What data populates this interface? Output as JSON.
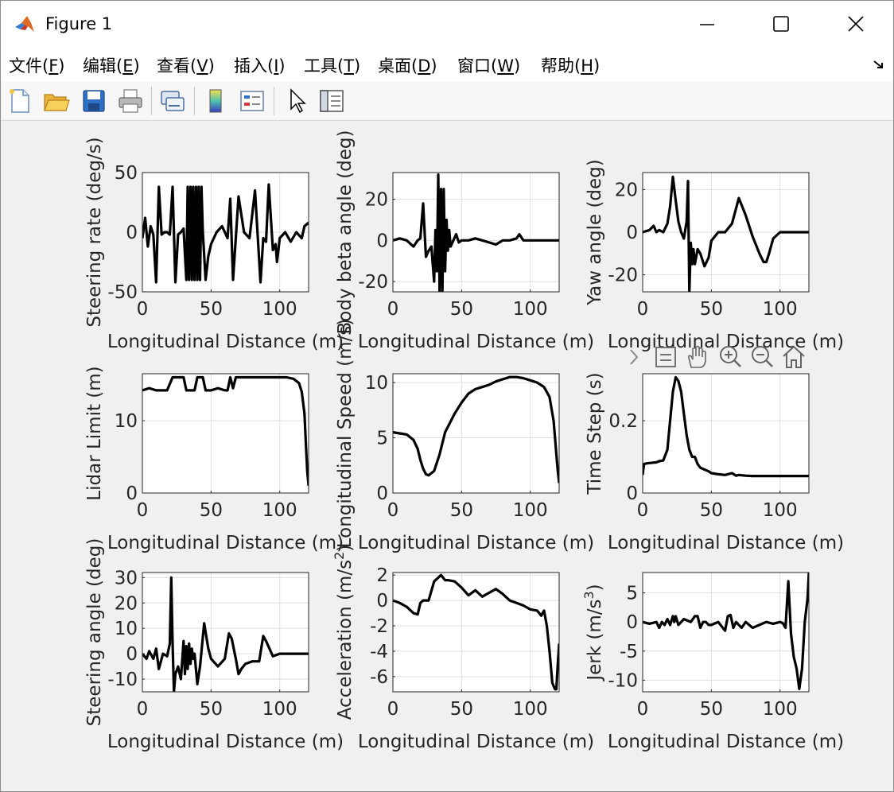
{
  "window": {
    "title": "Figure 1"
  },
  "menu": [
    {
      "pre": "文件(",
      "key": "F",
      "post": ")"
    },
    {
      "pre": "编辑(",
      "key": "E",
      "post": ")"
    },
    {
      "pre": "查看(",
      "key": "V",
      "post": ")"
    },
    {
      "pre": "插入(",
      "key": "I",
      "post": ")"
    },
    {
      "pre": "工具(",
      "key": "T",
      "post": ")"
    },
    {
      "pre": "桌面(",
      "key": "D",
      "post": ")"
    },
    {
      "pre": "窗口(",
      "key": "W",
      "post": ")"
    },
    {
      "pre": "帮助(",
      "key": "H",
      "post": ")"
    }
  ],
  "toolbar_icons": [
    "new-figure-icon",
    "open-file-icon",
    "save-icon",
    "print-icon",
    "link-plot-icon",
    "colorbar-icon",
    "legend-icon",
    "pointer-icon",
    "property-inspector-icon"
  ],
  "axes_toolbar_icons": [
    "chevron-right-icon",
    "data-tips-icon",
    "pan-hand-icon",
    "zoom-in-icon",
    "zoom-out-icon",
    "home-icon"
  ],
  "colors": {
    "line": "#000000",
    "axes_bg": "#ffffff",
    "grid": "#dfdfdf",
    "figure_bg": "#f0f0f0"
  },
  "chart_data": [
    {
      "type": "line",
      "ylabel": "Steering rate (deg/s)",
      "xlabel": "Longitudinal Distance (m)",
      "xlim": [
        0,
        121
      ],
      "ylim": [
        -50,
        50
      ],
      "xticks": [
        "0",
        "50",
        "100"
      ],
      "yticks": [
        "-50",
        "0",
        "50"
      ],
      "grid": true,
      "x": [
        0,
        2,
        4,
        6,
        8,
        10,
        12,
        14,
        16,
        18,
        20,
        22,
        24,
        26,
        28,
        30,
        32,
        33,
        34,
        35,
        36,
        37,
        38,
        39,
        40,
        41,
        42,
        43,
        44,
        46,
        48,
        50,
        54,
        58,
        62,
        64,
        66,
        70,
        74,
        78,
        82,
        86,
        88,
        90,
        92,
        95,
        97,
        98,
        100,
        104,
        108,
        112,
        116,
        118,
        121
      ],
      "y": [
        -5,
        12,
        -12,
        5,
        -2,
        -42,
        38,
        -2,
        0,
        0,
        -2,
        38,
        -42,
        -2,
        0,
        3,
        -40,
        38,
        -40,
        38,
        -40,
        38,
        -40,
        38,
        -40,
        38,
        -40,
        38,
        0,
        -40,
        -20,
        -10,
        0,
        5,
        -5,
        28,
        -40,
        30,
        0,
        -5,
        35,
        -42,
        -5,
        -8,
        40,
        -15,
        -10,
        -25,
        -5,
        0,
        -8,
        0,
        -5,
        5,
        8
      ]
    },
    {
      "type": "line",
      "ylabel": "Body beta angle (deg)",
      "xlabel": "Longitudinal Distance (m)",
      "xlim": [
        0,
        121
      ],
      "ylim": [
        -25,
        33
      ],
      "xticks": [
        "0",
        "50",
        "100"
      ],
      "yticks": [
        "-20",
        "0",
        "20"
      ],
      "grid": true,
      "x": [
        0,
        5,
        10,
        15,
        18,
        20,
        22,
        24,
        26,
        28,
        30,
        31,
        32,
        33,
        34,
        35,
        36,
        37,
        38,
        39,
        40,
        41,
        42,
        44,
        46,
        48,
        50,
        55,
        60,
        65,
        70,
        75,
        80,
        85,
        90,
        92,
        95,
        100,
        110,
        121
      ],
      "y": [
        0,
        1,
        0,
        -3,
        0,
        1,
        18,
        -8,
        -5,
        -3,
        -20,
        5,
        -15,
        32,
        -25,
        25,
        -25,
        25,
        -15,
        10,
        -5,
        5,
        -3,
        0,
        3,
        -1,
        0,
        0,
        1,
        0,
        -1,
        -2,
        0,
        0,
        1,
        3,
        0,
        0,
        0,
        0
      ]
    },
    {
      "type": "line",
      "ylabel": "Yaw angle (deg)",
      "xlabel": "Longitudinal Distance (m)",
      "xlim": [
        0,
        121
      ],
      "ylim": [
        -28,
        28
      ],
      "xticks": [
        "0",
        "50",
        "100"
      ],
      "yticks": [
        "-20",
        "0",
        "20"
      ],
      "grid": true,
      "x": [
        0,
        5,
        8,
        10,
        12,
        15,
        18,
        20,
        22,
        24,
        26,
        28,
        30,
        32,
        33,
        34,
        35,
        36,
        37,
        38,
        40,
        42,
        45,
        48,
        50,
        55,
        60,
        65,
        70,
        75,
        80,
        85,
        88,
        90,
        92,
        95,
        100,
        110,
        121
      ],
      "y": [
        0,
        1,
        3,
        0,
        1,
        0,
        4,
        12,
        26,
        15,
        5,
        0,
        -3,
        5,
        24,
        -28,
        -5,
        -15,
        -8,
        -15,
        -8,
        -10,
        -16,
        -12,
        -4,
        0,
        0,
        4,
        16,
        8,
        -2,
        -10,
        -14,
        -14,
        -10,
        -3,
        0,
        0,
        0
      ]
    },
    {
      "type": "line",
      "ylabel": "Lidar Limit (m)",
      "xlabel": "Longitudinal Distance (m)",
      "xlim": [
        0,
        121
      ],
      "ylim": [
        0,
        16.5
      ],
      "xticks": [
        "0",
        "50",
        "100"
      ],
      "yticks": [
        "0",
        "10"
      ],
      "grid": true,
      "x": [
        0,
        5,
        10,
        15,
        18,
        22,
        24,
        30,
        32,
        38,
        40,
        44,
        46,
        50,
        55,
        60,
        62,
        64,
        66,
        68,
        70,
        75,
        80,
        90,
        100,
        105,
        110,
        114,
        116,
        118,
        119,
        120,
        121
      ],
      "y": [
        14.2,
        14.5,
        14.2,
        14.2,
        14.2,
        16,
        16,
        16,
        14.2,
        14.2,
        16,
        16,
        14.2,
        14.2,
        14.5,
        14.2,
        14.2,
        16,
        14.5,
        16,
        16,
        16,
        16,
        16,
        16,
        16,
        15.8,
        15.2,
        14,
        11,
        7,
        3,
        1
      ]
    },
    {
      "type": "line",
      "ylabel": "Longitudinal Speed (m/s)",
      "xlabel": "Longitudinal Distance (m)",
      "xlim": [
        0,
        121
      ],
      "ylim": [
        0,
        10.8
      ],
      "xticks": [
        "0",
        "50",
        "100"
      ],
      "yticks": [
        "0",
        "5",
        "10"
      ],
      "grid": true,
      "x": [
        0,
        5,
        10,
        15,
        18,
        20,
        22,
        24,
        26,
        30,
        34,
        38,
        45,
        50,
        55,
        60,
        65,
        70,
        75,
        80,
        85,
        90,
        95,
        100,
        105,
        110,
        114,
        117,
        119,
        120,
        121
      ],
      "y": [
        5.5,
        5.4,
        5.3,
        4.8,
        4,
        3,
        2.2,
        1.7,
        1.6,
        2,
        3.5,
        5.5,
        7.2,
        8.2,
        9,
        9.4,
        9.6,
        9.8,
        10.1,
        10.3,
        10.5,
        10.5,
        10.4,
        10.2,
        10,
        9.6,
        8.7,
        6.5,
        3.5,
        2,
        0.9
      ]
    },
    {
      "type": "line",
      "ylabel": "Time Step (s)",
      "xlabel": "Longitudinal Distance (m)",
      "xlim": [
        0,
        121
      ],
      "ylim": [
        0,
        0.33
      ],
      "xticks": [
        "0",
        "50",
        "100"
      ],
      "yticks": [
        "0",
        "0.2"
      ],
      "grid": true,
      "x": [
        0,
        1,
        3,
        5,
        10,
        12,
        15,
        18,
        20,
        22,
        24,
        26,
        28,
        30,
        32,
        34,
        36,
        38,
        40,
        42,
        45,
        48,
        50,
        55,
        60,
        65,
        68,
        70,
        75,
        80,
        90,
        100,
        110,
        121
      ],
      "y": [
        0.05,
        0.08,
        0.082,
        0.083,
        0.085,
        0.088,
        0.09,
        0.12,
        0.2,
        0.28,
        0.32,
        0.31,
        0.28,
        0.22,
        0.16,
        0.12,
        0.1,
        0.1,
        0.08,
        0.07,
        0.065,
        0.06,
        0.055,
        0.052,
        0.05,
        0.055,
        0.048,
        0.05,
        0.048,
        0.047,
        0.047,
        0.047,
        0.047,
        0.047
      ]
    },
    {
      "type": "line",
      "ylabel": "Steering angle (deg)",
      "xlabel": "Longitudinal Distance (m)",
      "xlim": [
        0,
        121
      ],
      "ylim": [
        -15,
        32
      ],
      "xticks": [
        "0",
        "50",
        "100"
      ],
      "yticks": [
        "-10",
        "0",
        "10",
        "20",
        "30"
      ],
      "grid": true,
      "x": [
        0,
        3,
        5,
        8,
        10,
        12,
        15,
        18,
        20,
        21,
        22,
        23,
        24,
        26,
        28,
        30,
        31,
        32,
        33,
        34,
        35,
        36,
        37,
        38,
        40,
        42,
        45,
        48,
        50,
        55,
        60,
        63,
        65,
        68,
        70,
        72,
        75,
        80,
        85,
        88,
        90,
        95,
        100,
        110,
        121
      ],
      "y": [
        0,
        -2,
        1,
        -2,
        2,
        -6,
        0,
        -1,
        4,
        30,
        4,
        -15,
        -8,
        -5,
        -10,
        5,
        -8,
        3,
        -6,
        4,
        -4,
        2,
        -2,
        0,
        -12,
        -5,
        12,
        2,
        -2,
        -5,
        -2,
        8,
        6,
        -2,
        -8,
        -6,
        -4,
        -3,
        -3,
        7,
        5,
        -1,
        0,
        0,
        0
      ]
    },
    {
      "type": "line",
      "ylabel": "Acceleration (m/s^2)",
      "xlabel": "Longitudinal Distance (m)",
      "xlim": [
        0,
        121
      ],
      "ylim": [
        -7.2,
        2.2
      ],
      "xticks": [
        "0",
        "50",
        "100"
      ],
      "yticks": [
        "-6",
        "-4",
        "-2",
        "0",
        "2"
      ],
      "grid": true,
      "x": [
        0,
        5,
        10,
        15,
        18,
        20,
        22,
        24,
        26,
        30,
        35,
        38,
        40,
        45,
        50,
        55,
        60,
        65,
        70,
        75,
        80,
        85,
        90,
        95,
        100,
        105,
        108,
        110,
        112,
        114,
        116,
        118,
        119,
        120,
        121
      ],
      "y": [
        0,
        -0.2,
        -0.5,
        -1,
        -1.1,
        -0.2,
        0,
        0,
        0,
        1.5,
        2,
        1.6,
        1.6,
        1.5,
        1,
        0.4,
        0.8,
        0.3,
        0.6,
        0.9,
        0.5,
        0,
        -0.2,
        -0.4,
        -0.7,
        -0.8,
        -1.2,
        -0.8,
        -2,
        -4,
        -6.5,
        -7,
        -7,
        -5,
        -3.4
      ]
    },
    {
      "type": "line",
      "ylabel": "Jerk (m/s^3)",
      "xlabel": "Longitudinal Distance (m)",
      "xlim": [
        0,
        121
      ],
      "ylim": [
        -12,
        8.5
      ],
      "xticks": [
        "0",
        "50",
        "100"
      ],
      "yticks": [
        "-10",
        "-5",
        "0",
        "5"
      ],
      "grid": true,
      "x": [
        0,
        5,
        10,
        12,
        14,
        16,
        18,
        20,
        22,
        23,
        24,
        26,
        28,
        30,
        35,
        38,
        40,
        42,
        44,
        46,
        48,
        50,
        55,
        60,
        62,
        64,
        66,
        68,
        70,
        72,
        75,
        80,
        85,
        90,
        95,
        100,
        102,
        104,
        106,
        108,
        110,
        112,
        114,
        116,
        118,
        120,
        121
      ],
      "y": [
        0,
        -0.3,
        0,
        -1,
        0,
        -0.5,
        0.5,
        -0.5,
        1,
        0,
        1,
        -0.5,
        0,
        0.5,
        0,
        1,
        1,
        -1,
        0,
        0,
        -0.5,
        -0.5,
        0,
        -1.5,
        1,
        1.2,
        -1,
        0,
        -0.5,
        -1,
        0,
        -1,
        -0.5,
        0,
        -0.3,
        0,
        -0.2,
        -1,
        7,
        -2,
        -6,
        -8,
        -11.5,
        -8,
        0,
        4,
        8.5
      ]
    }
  ]
}
